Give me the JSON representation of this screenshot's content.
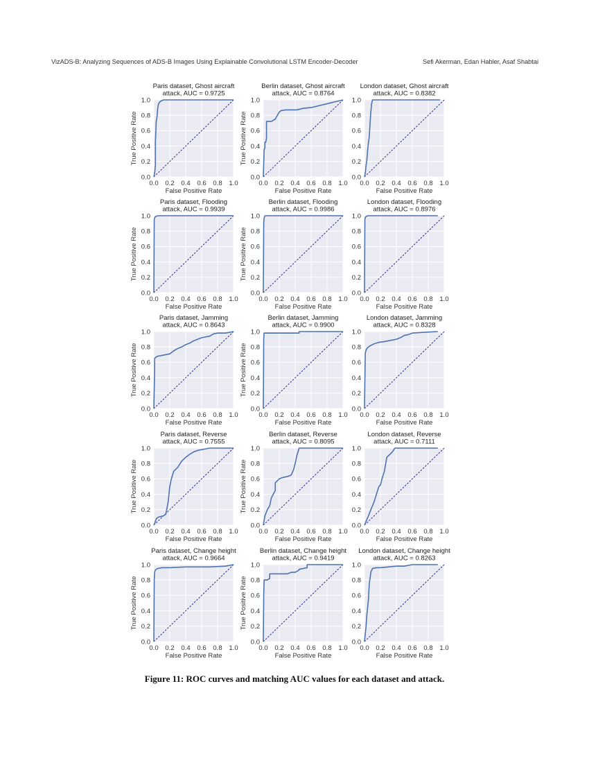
{
  "header": {
    "left": "VizADS-B: Analyzing Sequences of ADS-B Images Using Explainable Convolutional LSTM Encoder-Decoder",
    "right": "Sefi Akerman, Edan Habler, Asaf Shabtai"
  },
  "caption": "Figure 11: ROC curves and matching AUC values for each dataset and attack.",
  "colors": {
    "curve": "#4c72b0",
    "diagonal": "#1f1f8f",
    "plot_bg": "#eaeaf2",
    "grid": "#ffffff"
  },
  "chart_data": [
    {
      "type": "line",
      "title": [
        "Paris dataset, Ghost aircraft",
        "attack, AUC = 0.9725"
      ],
      "xlabel": "False Positive Rate",
      "ylabel": "True Positive Rate",
      "xlim": [
        0,
        1
      ],
      "ylim": [
        0,
        1
      ],
      "xticks": [
        "0.0",
        "0.2",
        "0.4",
        "0.6",
        "0.8",
        "1.0"
      ],
      "yticks": [
        "0.0",
        "0.2",
        "0.4",
        "0.6",
        "0.8",
        "1.0"
      ],
      "x": [
        0,
        0.01,
        0.02,
        0.02,
        0.03,
        0.04,
        0.05,
        0.06,
        0.08,
        0.1,
        0.12,
        0.15,
        1.0
      ],
      "y": [
        0,
        0.05,
        0.15,
        0.45,
        0.72,
        0.78,
        0.9,
        0.95,
        0.98,
        0.99,
        1.0,
        1.0,
        1.0
      ]
    },
    {
      "type": "line",
      "title": [
        "Berlin dataset, Ghost aircraft",
        "attack, AUC = 0.8764"
      ],
      "xlabel": "False Positive Rate",
      "ylabel": "True Positive Rate",
      "xlim": [
        0,
        1
      ],
      "ylim": [
        0,
        1
      ],
      "xticks": [
        "0.0",
        "0.2",
        "0.4",
        "0.6",
        "0.8",
        "1.0"
      ],
      "yticks": [
        "0.0",
        "0.2",
        "0.4",
        "0.6",
        "0.8",
        "1.0"
      ],
      "x": [
        0,
        0.01,
        0.02,
        0.02,
        0.03,
        0.04,
        0.04,
        0.1,
        0.15,
        0.16,
        0.2,
        0.22,
        0.28,
        0.35,
        0.42,
        0.5,
        0.6,
        0.8,
        1.0
      ],
      "y": [
        0,
        0.35,
        0.38,
        0.45,
        0.45,
        0.5,
        0.72,
        0.72,
        0.75,
        0.77,
        0.84,
        0.86,
        0.87,
        0.87,
        0.87,
        0.89,
        0.9,
        0.95,
        1.0
      ]
    },
    {
      "type": "line",
      "title": [
        "London dataset, Ghost aircraft",
        "attack, AUC = 0.8382"
      ],
      "xlabel": "False Positive Rate",
      "ylabel": "",
      "xlim": [
        0,
        1
      ],
      "ylim": [
        0,
        1
      ],
      "xticks": [
        "0.0",
        "0.2",
        "0.4",
        "0.6",
        "0.8",
        "1.0"
      ],
      "yticks": [
        "0.0",
        "0.2",
        "0.4",
        "0.6",
        "0.8",
        "1.0"
      ],
      "x": [
        0,
        0.01,
        0.02,
        0.03,
        0.04,
        0.05,
        0.06,
        0.07,
        0.08,
        0.09,
        0.1,
        0.95
      ],
      "y": [
        0,
        0.05,
        0.15,
        0.22,
        0.35,
        0.45,
        0.52,
        0.7,
        0.85,
        0.95,
        1.0,
        1.0
      ]
    },
    {
      "type": "line",
      "title": [
        "Paris dataset, Flooding",
        "attack, AUC = 0.9939"
      ],
      "xlabel": "False Positive Rate",
      "ylabel": "True Positive Rate",
      "xlim": [
        0,
        1
      ],
      "ylim": [
        0,
        1
      ],
      "xticks": [
        "0.0",
        "0.2",
        "0.4",
        "0.6",
        "0.8",
        "1.0"
      ],
      "yticks": [
        "0.0",
        "0.2",
        "0.4",
        "0.6",
        "0.8",
        "1.0"
      ],
      "x": [
        0,
        0.005,
        0.01,
        0.015,
        0.02,
        0.05,
        0.1,
        1.0
      ],
      "y": [
        0,
        0.95,
        0.97,
        0.98,
        0.99,
        1.0,
        1.0,
        1.0
      ]
    },
    {
      "type": "line",
      "title": [
        "Berlin dataset, Flooding",
        "attack, AUC = 0.9986"
      ],
      "xlabel": "False Positive Rate",
      "ylabel": "True Positive Rate",
      "xlim": [
        0,
        1
      ],
      "ylim": [
        0,
        1
      ],
      "xticks": [
        "0.0",
        "0.2",
        "0.4",
        "0.6",
        "0.8",
        "1.0"
      ],
      "yticks": [
        "0.0",
        "0.2",
        "0.4",
        "0.6",
        "0.8",
        "1.0"
      ],
      "x": [
        0,
        0.005,
        0.01,
        0.02,
        1.0
      ],
      "y": [
        0,
        0.9,
        0.97,
        1.0,
        1.0
      ]
    },
    {
      "type": "line",
      "title": [
        "London dataset, Flooding",
        "attack, AUC = 0.8976"
      ],
      "xlabel": "False Positive Rate",
      "ylabel": "",
      "xlim": [
        0,
        1
      ],
      "ylim": [
        0,
        1
      ],
      "xticks": [
        "0.0",
        "0.2",
        "0.4",
        "0.6",
        "0.8",
        "1.0"
      ],
      "yticks": [
        "0.0",
        "0.2",
        "0.4",
        "0.6",
        "0.8",
        "1.0"
      ],
      "x": [
        0,
        0.005,
        0.01,
        0.02,
        0.04,
        0.92
      ],
      "y": [
        0,
        0.95,
        0.98,
        0.99,
        1.0,
        1.0
      ]
    },
    {
      "type": "line",
      "title": [
        "Paris dataset, Jamming",
        "attack, AUC = 0.8643"
      ],
      "xlabel": "False Positive Rate",
      "ylabel": "True Positive Rate",
      "xlim": [
        0,
        1
      ],
      "ylim": [
        0,
        1
      ],
      "xticks": [
        "0.0",
        "0.2",
        "0.4",
        "0.6",
        "0.8",
        "1.0"
      ],
      "yticks": [
        "0.0",
        "0.2",
        "0.4",
        "0.6",
        "0.8",
        "1.0"
      ],
      "x": [
        0,
        0.01,
        0.01,
        0.03,
        0.05,
        0.1,
        0.15,
        0.2,
        0.25,
        0.3,
        0.35,
        0.4,
        0.45,
        0.5,
        0.55,
        0.6,
        0.65,
        0.7,
        0.75,
        0.8,
        0.9,
        1.0
      ],
      "y": [
        0,
        0.5,
        0.65,
        0.67,
        0.68,
        0.69,
        0.7,
        0.71,
        0.75,
        0.78,
        0.8,
        0.83,
        0.85,
        0.88,
        0.9,
        0.92,
        0.93,
        0.94,
        0.97,
        0.98,
        0.98,
        1.0
      ]
    },
    {
      "type": "line",
      "title": [
        "Berlin dataset, Jamming",
        "attack, AUC = 0.9900"
      ],
      "xlabel": "False Positive Rate",
      "ylabel": "True Positive Rate",
      "xlim": [
        0,
        1
      ],
      "ylim": [
        0,
        1
      ],
      "xticks": [
        "0.0",
        "0.2",
        "0.4",
        "0.6",
        "0.8",
        "1.0"
      ],
      "yticks": [
        "0.0",
        "0.2",
        "0.4",
        "0.6",
        "0.8",
        "1.0"
      ],
      "x": [
        0,
        0.005,
        0.01,
        0.45,
        0.45,
        1.0
      ],
      "y": [
        0,
        0.9,
        0.98,
        0.98,
        1.0,
        1.0
      ]
    },
    {
      "type": "line",
      "title": [
        "London dataset, Jamming",
        "attack, AUC = 0.8328"
      ],
      "xlabel": "False Positive Rate",
      "ylabel": "",
      "xlim": [
        0,
        1
      ],
      "ylim": [
        0,
        1
      ],
      "xticks": [
        "0.0",
        "0.2",
        "0.4",
        "0.6",
        "0.8",
        "1.0"
      ],
      "yticks": [
        "0.0",
        "0.2",
        "0.4",
        "0.6",
        "0.8",
        "1.0"
      ],
      "x": [
        0,
        0.01,
        0.02,
        0.03,
        0.05,
        0.08,
        0.12,
        0.18,
        0.25,
        0.3,
        0.4,
        0.45,
        0.5,
        0.55,
        0.6,
        0.75,
        0.92
      ],
      "y": [
        0,
        0.72,
        0.76,
        0.78,
        0.8,
        0.82,
        0.84,
        0.86,
        0.87,
        0.88,
        0.9,
        0.92,
        0.95,
        0.96,
        0.98,
        0.99,
        1.0
      ]
    },
    {
      "type": "line",
      "title": [
        "Paris dataset, Reverse",
        "attack, AUC = 0.7555"
      ],
      "xlabel": "False Positive Rate",
      "ylabel": "True Positive Rate",
      "xlim": [
        0,
        1
      ],
      "ylim": [
        0,
        1
      ],
      "xticks": [
        "0.0",
        "0.2",
        "0.4",
        "0.6",
        "0.8",
        "1.0"
      ],
      "yticks": [
        "0.0",
        "0.2",
        "0.4",
        "0.6",
        "0.8",
        "1.0"
      ],
      "x": [
        0,
        0.01,
        0.03,
        0.05,
        0.08,
        0.12,
        0.15,
        0.18,
        0.2,
        0.22,
        0.25,
        0.3,
        0.35,
        0.4,
        0.45,
        0.5,
        0.55,
        0.6,
        0.65,
        0.7,
        0.8,
        1.0
      ],
      "y": [
        0,
        0.02,
        0.08,
        0.1,
        0.11,
        0.12,
        0.14,
        0.3,
        0.5,
        0.6,
        0.7,
        0.75,
        0.83,
        0.88,
        0.92,
        0.95,
        0.97,
        0.98,
        0.99,
        1.0,
        1.0,
        1.0
      ]
    },
    {
      "type": "line",
      "title": [
        "Berlin dataset, Reverse",
        "attack, AUC = 0.8095"
      ],
      "xlabel": "False Positive Rate",
      "ylabel": "True Positive Rate",
      "xlim": [
        0,
        1
      ],
      "ylim": [
        0,
        1
      ],
      "xticks": [
        "0.0",
        "0.2",
        "0.4",
        "0.6",
        "0.8",
        "1.0"
      ],
      "yticks": [
        "0.0",
        "0.2",
        "0.4",
        "0.6",
        "0.8",
        "1.0"
      ],
      "x": [
        0,
        0.02,
        0.05,
        0.08,
        0.1,
        0.15,
        0.15,
        0.2,
        0.25,
        0.3,
        0.35,
        0.38,
        0.4,
        0.42,
        0.45,
        1.0
      ],
      "y": [
        0,
        0.12,
        0.2,
        0.25,
        0.35,
        0.45,
        0.55,
        0.6,
        0.62,
        0.63,
        0.65,
        0.72,
        0.8,
        0.9,
        1.0,
        1.0
      ]
    },
    {
      "type": "line",
      "title": [
        "London dataset, Reverse",
        "attack, AUC = 0.7111"
      ],
      "xlabel": "False Positive Rate",
      "ylabel": "",
      "xlim": [
        0,
        1
      ],
      "ylim": [
        0,
        1
      ],
      "xticks": [
        "0.0",
        "0.2",
        "0.4",
        "0.6",
        "0.8",
        "1.0"
      ],
      "yticks": [
        "0.0",
        "0.2",
        "0.4",
        "0.6",
        "0.8",
        "1.0"
      ],
      "x": [
        0,
        0.02,
        0.05,
        0.08,
        0.1,
        0.12,
        0.15,
        0.18,
        0.2,
        0.22,
        0.25,
        0.28,
        0.3,
        0.32,
        0.35,
        0.38,
        0.4,
        0.92
      ],
      "y": [
        0,
        0.05,
        0.12,
        0.2,
        0.25,
        0.3,
        0.4,
        0.5,
        0.52,
        0.6,
        0.7,
        0.88,
        0.9,
        0.92,
        0.95,
        1.0,
        1.0,
        1.0
      ]
    },
    {
      "type": "line",
      "title": [
        "Paris dataset, Change height",
        "attack, AUC = 0.9664"
      ],
      "xlabel": "False Positive Rate",
      "ylabel": "True Positive Rate",
      "xlim": [
        0,
        1
      ],
      "ylim": [
        0,
        1
      ],
      "xticks": [
        "0.0",
        "0.2",
        "0.4",
        "0.6",
        "0.8",
        "1.0"
      ],
      "yticks": [
        "0.0",
        "0.2",
        "0.4",
        "0.6",
        "0.8",
        "1.0"
      ],
      "x": [
        0,
        0.005,
        0.01,
        0.02,
        0.03,
        0.05,
        0.1,
        0.2,
        0.4,
        0.7,
        0.9,
        0.95,
        1.0
      ],
      "y": [
        0,
        0.8,
        0.9,
        0.93,
        0.94,
        0.95,
        0.96,
        0.96,
        0.97,
        0.97,
        0.98,
        0.99,
        1.0
      ]
    },
    {
      "type": "line",
      "title": [
        "Berlin dataset, Change height",
        "attack, AUC = 0.9419"
      ],
      "xlabel": "False Positive Rate",
      "ylabel": "True Positive Rate",
      "xlim": [
        0,
        1
      ],
      "ylim": [
        0,
        1
      ],
      "xticks": [
        "0.0",
        "0.2",
        "0.4",
        "0.6",
        "0.8",
        "1.0"
      ],
      "yticks": [
        "0.0",
        "0.2",
        "0.4",
        "0.6",
        "0.8",
        "1.0"
      ],
      "x": [
        0,
        0.005,
        0.01,
        0.05,
        0.08,
        0.08,
        0.3,
        0.35,
        0.4,
        0.45,
        0.45,
        0.5,
        0.55,
        0.55,
        1.0
      ],
      "y": [
        0,
        0.6,
        0.8,
        0.8,
        0.82,
        0.88,
        0.88,
        0.9,
        0.9,
        0.93,
        0.94,
        0.95,
        0.96,
        1.0,
        1.0
      ]
    },
    {
      "type": "line",
      "title": [
        "London dataset, Change height",
        "attack, AUC = 0.8263"
      ],
      "xlabel": "False Positive Rate",
      "ylabel": "",
      "xlim": [
        0,
        1
      ],
      "ylim": [
        0,
        1
      ],
      "xticks": [
        "0.0",
        "0.2",
        "0.4",
        "0.6",
        "0.8",
        "1.0"
      ],
      "yticks": [
        "0.0",
        "0.2",
        "0.4",
        "0.6",
        "0.8",
        "1.0"
      ],
      "x": [
        0,
        0.01,
        0.02,
        0.03,
        0.05,
        0.06,
        0.08,
        0.1,
        0.15,
        0.2,
        0.3,
        0.4,
        0.5,
        0.6,
        0.92
      ],
      "y": [
        0,
        0.1,
        0.2,
        0.35,
        0.55,
        0.75,
        0.9,
        0.95,
        0.96,
        0.96,
        0.97,
        0.98,
        0.98,
        1.0,
        1.0
      ]
    }
  ]
}
